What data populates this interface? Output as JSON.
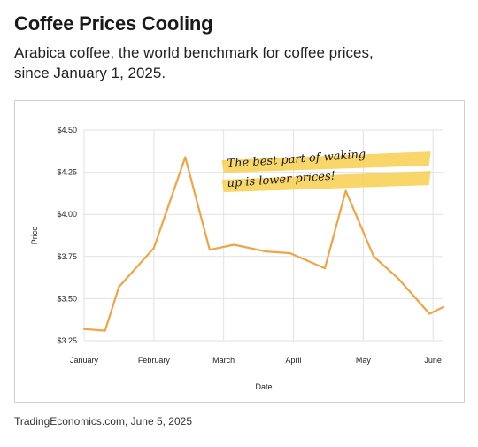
{
  "header": {
    "title": "Coffee Prices Cooling",
    "subtitle": "Arabica coffee, the world benchmark for coffee prices, since January 1, 2025."
  },
  "source": "TradingEconomics.com, June 5, 2025",
  "colors": {
    "line": "#f0a444",
    "highlight": "#f7cf4f",
    "grid": "#e2e2e2"
  },
  "chart_data": {
    "type": "line",
    "xlabel": "Date",
    "ylabel": "Price",
    "ylim": [
      3.25,
      4.5
    ],
    "yticks": [
      {
        "value": 3.25,
        "label": "$3.25"
      },
      {
        "value": 3.5,
        "label": "$3.50"
      },
      {
        "value": 3.75,
        "label": "$3.75"
      },
      {
        "value": 4.0,
        "label": "$4.00"
      },
      {
        "value": 4.25,
        "label": "$4.25"
      },
      {
        "value": 4.5,
        "label": "$4.50"
      }
    ],
    "xlim": [
      0,
      10.3
    ],
    "xticks": [
      {
        "pos": 0,
        "label": "January"
      },
      {
        "pos": 2,
        "label": "February"
      },
      {
        "pos": 4,
        "label": "March"
      },
      {
        "pos": 6,
        "label": "April"
      },
      {
        "pos": 8,
        "label": "May"
      },
      {
        "pos": 10,
        "label": "June"
      }
    ],
    "grid": true,
    "series": [
      {
        "x": [
          0,
          0.6,
          1.0,
          2.0,
          2.9,
          3.6,
          4.3,
          5.2,
          5.9,
          6.9,
          7.5,
          8.3,
          9.0,
          9.9,
          10.3
        ],
        "values": [
          3.32,
          3.31,
          3.57,
          3.8,
          4.34,
          3.79,
          3.82,
          3.78,
          3.77,
          3.68,
          4.14,
          3.75,
          3.62,
          3.41,
          3.45
        ]
      }
    ],
    "annotation": {
      "lines": [
        "The best part of waking",
        "up is lower prices!"
      ],
      "x": 4.1,
      "y": 4.3
    }
  }
}
